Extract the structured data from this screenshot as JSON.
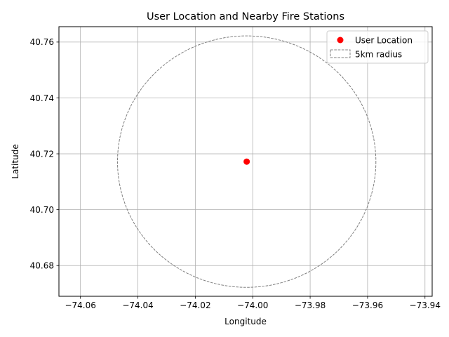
{
  "chart_data": {
    "type": "scatter",
    "title": "User Location and Nearby Fire Stations",
    "xlabel": "Longitude",
    "ylabel": "Latitude",
    "xlim": [
      -74.0675,
      -73.9375
    ],
    "ylim": [
      40.669,
      40.7655
    ],
    "xticks": [
      -74.06,
      -74.04,
      -74.02,
      -74.0,
      -73.98,
      -73.96,
      -73.94
    ],
    "xtick_labels": [
      "−74.06",
      "−74.04",
      "−74.02",
      "−74.00",
      "−73.98",
      "−73.96",
      "−73.94"
    ],
    "yticks": [
      40.68,
      40.7,
      40.72,
      40.74,
      40.76
    ],
    "ytick_labels": [
      "40.68",
      "40.70",
      "40.72",
      "40.74",
      "40.76"
    ],
    "grid": true,
    "legend_position": "top-right",
    "series": [
      {
        "name": "User Location",
        "kind": "point",
        "color": "#ff0000",
        "points": [
          {
            "x": -74.0021,
            "y": 40.7172
          }
        ]
      },
      {
        "name": "5km radius",
        "kind": "circle",
        "color": "#808080",
        "linestyle": "dashed",
        "center": {
          "x": -74.0021,
          "y": 40.7172
        },
        "radius_lon": 0.045,
        "radius_lat": 0.045
      }
    ]
  }
}
